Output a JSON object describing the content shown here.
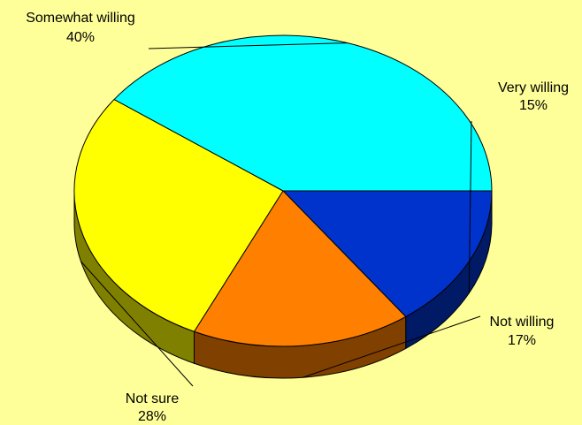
{
  "chart_data": {
    "type": "pie",
    "style": "3d",
    "legend": "none",
    "slices": [
      {
        "label": "Very willing",
        "value": 15,
        "value_label": "15%",
        "color": "#0033CC",
        "side_color": "#001A66"
      },
      {
        "label": "Not willing",
        "value": 17,
        "value_label": "17%",
        "color": "#FF8000",
        "side_color": "#804000"
      },
      {
        "label": "Not sure",
        "value": 28,
        "value_label": "28%",
        "color": "#FFFF00",
        "side_color": "#808000"
      },
      {
        "label": "Somewhat willing",
        "value": 40,
        "value_label": "40%",
        "color": "#00FFFF",
        "side_color": "#008080"
      }
    ]
  },
  "background_color": "#FFFF99"
}
